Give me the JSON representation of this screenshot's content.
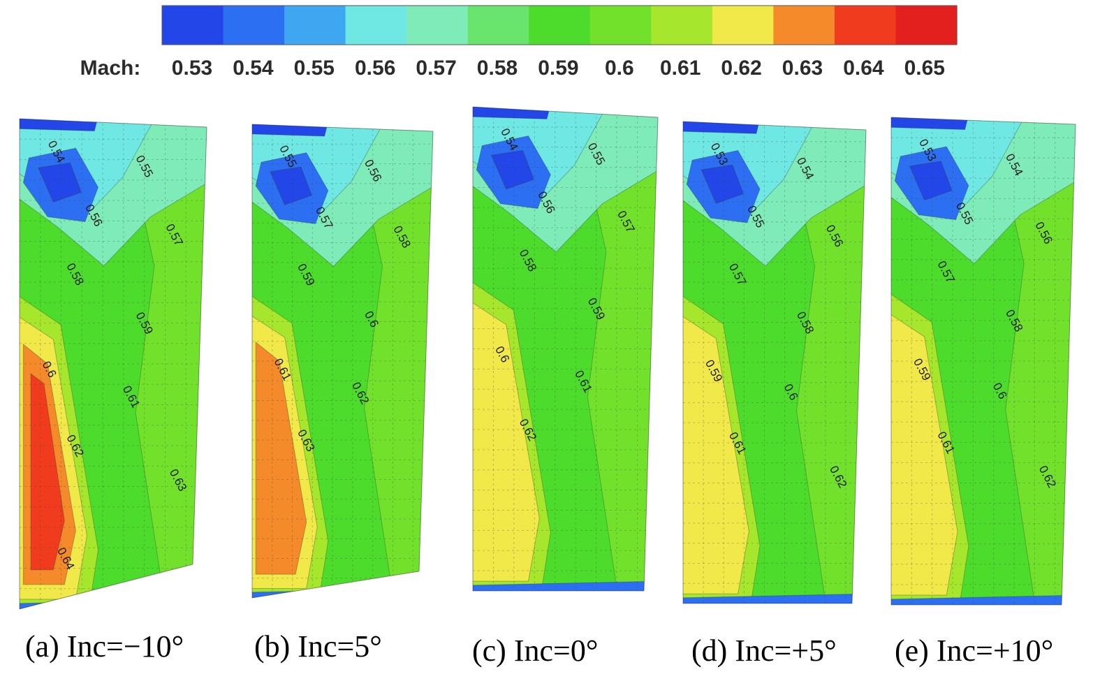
{
  "legend": {
    "label": "Mach:",
    "levels": [
      "0.53",
      "0.54",
      "0.55",
      "0.56",
      "0.57",
      "0.58",
      "0.59",
      "0.6",
      "0.61",
      "0.62",
      "0.63",
      "0.64",
      "0.65"
    ],
    "colors": [
      "#2346e8",
      "#2d6ff2",
      "#3fa6f2",
      "#6fe8e4",
      "#7eebb8",
      "#69e56d",
      "#4ddc2c",
      "#72e12c",
      "#a6e62c",
      "#f1e84a",
      "#f58a2a",
      "#f03b1e",
      "#e3201e"
    ],
    "label_color": "#2b2b2b"
  },
  "chart_data": [
    {
      "type": "heatmap",
      "caption": "(a) Inc=−10°",
      "visible_contour_labels": [
        "0.54",
        "0.55",
        "0.56",
        "0.57",
        "0.58",
        "0.59",
        "0.6",
        "0.61",
        "0.62",
        "0.63",
        "0.64"
      ],
      "max_label": "0.64"
    },
    {
      "type": "heatmap",
      "caption": "(b) Inc=5°",
      "visible_contour_labels": [
        "0.55",
        "0.56",
        "0.57",
        "0.58",
        "0.59",
        "0.6",
        "0.61",
        "0.62",
        "0.63"
      ],
      "max_label": "0.63"
    },
    {
      "type": "heatmap",
      "caption": "(c) Inc=0°",
      "visible_contour_labels": [
        "0.54",
        "0.55",
        "0.56",
        "0.57",
        "0.58",
        "0.59",
        "0.6",
        "0.61",
        "0.62"
      ],
      "max_label": "0.62"
    },
    {
      "type": "heatmap",
      "caption": "(d) Inc=+5°",
      "visible_contour_labels": [
        "0.53",
        "0.54",
        "0.55",
        "0.56",
        "0.57",
        "0.58",
        "0.59",
        "0.6",
        "0.61",
        "0.62"
      ],
      "max_label": "0.62"
    },
    {
      "type": "heatmap",
      "caption": "(e) Inc=+10°",
      "visible_contour_labels": [
        "0.53",
        "0.54",
        "0.55",
        "0.56",
        "0.57",
        "0.58",
        "0.59",
        "0.6",
        "0.61",
        "0.62"
      ],
      "max_label": "0.62"
    }
  ]
}
